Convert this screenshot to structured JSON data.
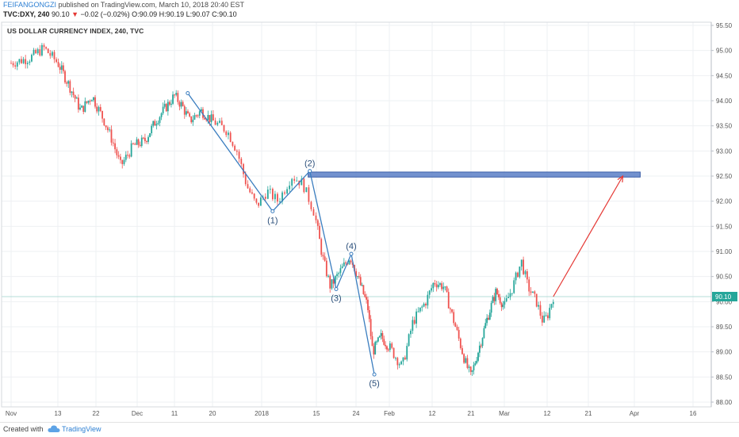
{
  "header": {
    "author": "FEIFANGONGZI",
    "published": "published on TradingView.com, March 10, 2018 20:40 EST",
    "symbol": "TVC:DXY, 240",
    "last": "90.10",
    "change": "−0.02 (−0.02%)",
    "ohlc": "O:90.09 H:90.19 L:90.07 C:90.10"
  },
  "footer": {
    "created_with": "Created with",
    "brand": "TradingView"
  },
  "colors": {
    "up": "#26a69a",
    "down": "#ef5350",
    "wave": "#3a7dbf",
    "zone": "#5b7fc7",
    "arrow": "#e53935",
    "grid": "#eef0f3",
    "price_tag": "#26a69a"
  },
  "chart_data": {
    "type": "candlestick",
    "title": "US DOLLAR CURRENCY INDEX, 240, TVC",
    "xlabel": "",
    "ylabel": "",
    "ylim": [
      87.9,
      95.55
    ],
    "y_ticks": [
      "95.50",
      "95.00",
      "94.50",
      "94.00",
      "93.50",
      "93.00",
      "92.50",
      "92.00",
      "91.50",
      "91.00",
      "90.50",
      "90.00",
      "89.50",
      "89.00",
      "88.50",
      "88.00"
    ],
    "x_ticks": [
      "Nov",
      "13",
      "22",
      "Dec",
      "11",
      "20",
      "2018",
      "15",
      "24",
      "Feb",
      "12",
      "21",
      "Mar",
      "12",
      "21",
      "Apr",
      "16"
    ],
    "last_price": "90.10",
    "x_index": [
      "Nov",
      "13",
      "22",
      "Dec",
      "11",
      "20",
      "2018",
      "15",
      "24",
      "Feb",
      "12",
      "21",
      "Mar",
      "12",
      "21",
      "Apr",
      "16"
    ],
    "close_path": [
      {
        "t": 0.0,
        "v": 94.75
      },
      {
        "t": 0.4,
        "v": 94.85
      },
      {
        "t": 0.7,
        "v": 95.05
      },
      {
        "t": 1.0,
        "v": 94.75
      },
      {
        "t": 1.3,
        "v": 94.3
      },
      {
        "t": 1.6,
        "v": 93.8
      },
      {
        "t": 1.9,
        "v": 94.1
      },
      {
        "t": 2.2,
        "v": 93.6
      },
      {
        "t": 2.4,
        "v": 93.2
      },
      {
        "t": 2.6,
        "v": 92.7
      },
      {
        "t": 2.9,
        "v": 93.1
      },
      {
        "t": 3.2,
        "v": 93.2
      },
      {
        "t": 3.5,
        "v": 93.6
      },
      {
        "t": 3.8,
        "v": 93.9
      },
      {
        "t": 4.0,
        "v": 94.1
      },
      {
        "t": 4.2,
        "v": 93.9
      },
      {
        "t": 4.4,
        "v": 93.6
      },
      {
        "t": 4.7,
        "v": 93.8
      },
      {
        "t": 5.0,
        "v": 93.6
      },
      {
        "t": 5.3,
        "v": 93.4
      },
      {
        "t": 5.5,
        "v": 93.0
      },
      {
        "t": 5.7,
        "v": 92.3
      },
      {
        "t": 5.9,
        "v": 91.9
      },
      {
        "t": 6.1,
        "v": 92.2
      },
      {
        "t": 6.3,
        "v": 92.0
      },
      {
        "t": 6.55,
        "v": 92.5
      },
      {
        "t": 6.75,
        "v": 92.35
      },
      {
        "t": 6.95,
        "v": 91.8
      },
      {
        "t": 7.15,
        "v": 90.9
      },
      {
        "t": 7.35,
        "v": 90.3
      },
      {
        "t": 7.6,
        "v": 90.6
      },
      {
        "t": 7.85,
        "v": 90.9
      },
      {
        "t": 8.1,
        "v": 90.4
      },
      {
        "t": 8.35,
        "v": 89.9
      },
      {
        "t": 8.5,
        "v": 89.0
      },
      {
        "t": 8.75,
        "v": 89.3
      },
      {
        "t": 9.0,
        "v": 89.1
      },
      {
        "t": 9.3,
        "v": 88.7
      },
      {
        "t": 9.55,
        "v": 89.6
      },
      {
        "t": 9.85,
        "v": 90.0
      },
      {
        "t": 10.05,
        "v": 90.4
      },
      {
        "t": 10.3,
        "v": 90.3
      },
      {
        "t": 10.6,
        "v": 89.5
      },
      {
        "t": 10.85,
        "v": 88.8
      },
      {
        "t": 11.0,
        "v": 88.5
      },
      {
        "t": 11.25,
        "v": 89.1
      },
      {
        "t": 11.5,
        "v": 89.7
      },
      {
        "t": 11.75,
        "v": 90.2
      },
      {
        "t": 12.0,
        "v": 89.9
      },
      {
        "t": 12.2,
        "v": 90.3
      },
      {
        "t": 12.4,
        "v": 90.8
      },
      {
        "t": 12.55,
        "v": 90.3
      },
      {
        "t": 12.75,
        "v": 90.0
      },
      {
        "t": 12.9,
        "v": 89.6
      },
      {
        "t": 13.0,
        "v": 89.7
      },
      {
        "t": 13.15,
        "v": 90.1
      }
    ],
    "wave_points": [
      {
        "label": "",
        "t": 4.35,
        "v": 94.15
      },
      {
        "label": "(1)",
        "t": 6.2,
        "v": 91.8
      },
      {
        "label": "(2)",
        "t": 6.88,
        "v": 92.6
      },
      {
        "label": "(3)",
        "t": 7.5,
        "v": 90.25
      },
      {
        "label": "(4)",
        "t": 7.88,
        "v": 90.95
      },
      {
        "label": "(5)",
        "t": 8.55,
        "v": 88.55
      }
    ],
    "resistance_zone": {
      "v_low": 92.48,
      "v_high": 92.58,
      "t_start": 6.85,
      "t_end": 15.1
    },
    "projection_arrow": {
      "from": {
        "t": 13.15,
        "v": 90.1
      },
      "to": {
        "t": 14.75,
        "v": 92.5
      }
    }
  }
}
